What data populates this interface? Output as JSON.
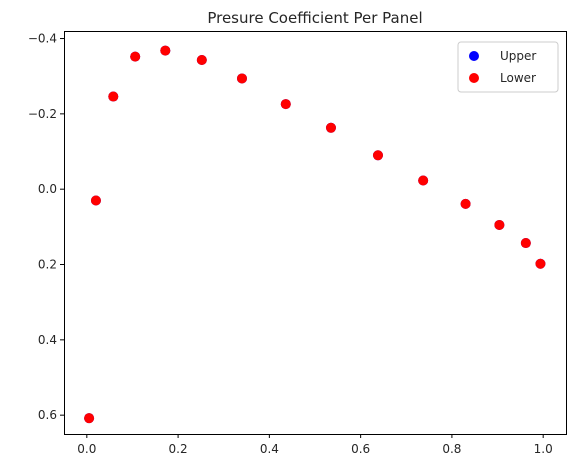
{
  "chart_data": {
    "type": "scatter",
    "title": "Presure Coefficient Per Panel",
    "xlabel": "",
    "ylabel": "",
    "xlim": [
      -0.05,
      1.05
    ],
    "ylim": [
      0.65,
      -0.42
    ],
    "y_inverted": true,
    "x_ticks": [
      0.0,
      0.2,
      0.4,
      0.6,
      0.8,
      1.0
    ],
    "x_tick_labels": [
      "0.0",
      "0.2",
      "0.4",
      "0.6",
      "0.8",
      "1.0"
    ],
    "y_ticks": [
      -0.4,
      -0.2,
      0.0,
      0.2,
      0.4,
      0.6
    ],
    "y_tick_labels": [
      "−0.4",
      "−0.2",
      "0.0",
      "0.2",
      "0.4",
      "0.6"
    ],
    "grid": false,
    "legend_position": "top-right",
    "series": [
      {
        "name": "Upper",
        "color": "#0000ff",
        "x": [
          0.005,
          0.02,
          0.058,
          0.106,
          0.172,
          0.252,
          0.34,
          0.436,
          0.535,
          0.638,
          0.737,
          0.83,
          0.904,
          0.962,
          0.994
        ],
        "y": [
          0.608,
          0.03,
          -0.246,
          -0.352,
          -0.368,
          -0.343,
          -0.294,
          -0.226,
          -0.163,
          -0.09,
          -0.023,
          0.039,
          0.095,
          0.143,
          0.198
        ]
      },
      {
        "name": "Lower",
        "color": "#ff0000",
        "x": [
          0.005,
          0.02,
          0.058,
          0.106,
          0.172,
          0.252,
          0.34,
          0.436,
          0.535,
          0.638,
          0.737,
          0.83,
          0.904,
          0.962,
          0.994
        ],
        "y": [
          0.608,
          0.03,
          -0.246,
          -0.352,
          -0.368,
          -0.343,
          -0.294,
          -0.226,
          -0.163,
          -0.09,
          -0.023,
          0.039,
          0.095,
          0.143,
          0.198
        ]
      }
    ]
  }
}
